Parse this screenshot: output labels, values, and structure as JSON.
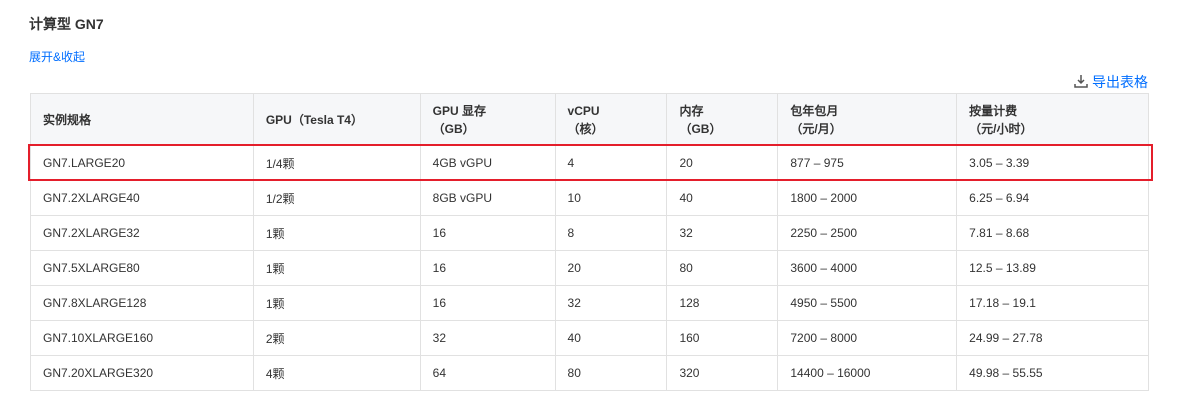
{
  "title": "计算型 GN7",
  "toggle_label": "展开&收起",
  "export_label": "导出表格",
  "highlight_color": "#e41e2b",
  "columns": [
    {
      "l1": "实例规格",
      "l2": ""
    },
    {
      "l1": "GPU（Tesla T4）",
      "l2": ""
    },
    {
      "l1": "GPU 显存",
      "l2": "（GB）"
    },
    {
      "l1": "vCPU",
      "l2": "（核）"
    },
    {
      "l1": "内存",
      "l2": "（GB）"
    },
    {
      "l1": "包年包月",
      "l2": "（元/月）"
    },
    {
      "l1": "按量计费",
      "l2": "（元/小时）"
    }
  ],
  "rows": [
    [
      "GN7.LARGE20",
      "1/4颗",
      "4GB vGPU",
      "4",
      "20",
      "877 – 975",
      "3.05 – 3.39"
    ],
    [
      "GN7.2XLARGE40",
      "1/2颗",
      "8GB vGPU",
      "10",
      "40",
      "1800 – 2000",
      "6.25 – 6.94"
    ],
    [
      "GN7.2XLARGE32",
      "1颗",
      "16",
      "8",
      "32",
      "2250 – 2500",
      "7.81 – 8.68"
    ],
    [
      "GN7.5XLARGE80",
      "1颗",
      "16",
      "20",
      "80",
      "3600 – 4000",
      "12.5 – 13.89"
    ],
    [
      "GN7.8XLARGE128",
      "1颗",
      "16",
      "32",
      "128",
      "4950 – 5500",
      "17.18 – 19.1"
    ],
    [
      "GN7.10XLARGE160",
      "2颗",
      "32",
      "40",
      "160",
      "7200 – 8000",
      "24.99 – 27.78"
    ],
    [
      "GN7.20XLARGE320",
      "4颗",
      "64",
      "80",
      "320",
      "14400 – 16000",
      "49.98 – 55.55"
    ]
  ]
}
